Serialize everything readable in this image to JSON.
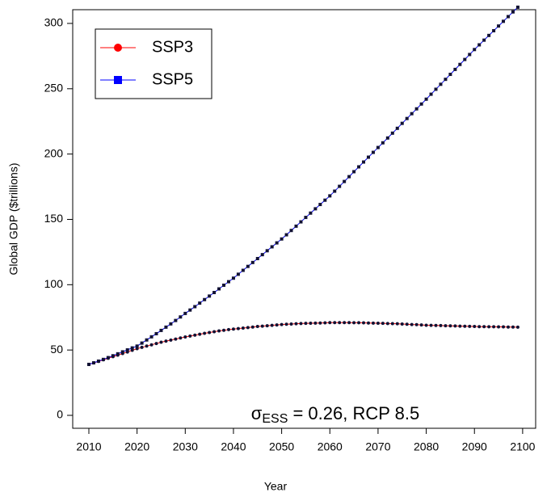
{
  "chart_data": {
    "type": "line",
    "x_label": "Year",
    "y_label": "Global GDP ($trillions)",
    "annotation": {
      "symbol": "σ",
      "subscript": "ESS",
      "text": " = 0.26, RCP 8.5"
    },
    "x": [
      2010,
      2011,
      2012,
      2013,
      2014,
      2015,
      2016,
      2017,
      2018,
      2019,
      2020,
      2021,
      2022,
      2023,
      2024,
      2025,
      2026,
      2027,
      2028,
      2029,
      2030,
      2031,
      2032,
      2033,
      2034,
      2035,
      2036,
      2037,
      2038,
      2039,
      2040,
      2041,
      2042,
      2043,
      2044,
      2045,
      2046,
      2047,
      2048,
      2049,
      2050,
      2051,
      2052,
      2053,
      2054,
      2055,
      2056,
      2057,
      2058,
      2059,
      2060,
      2061,
      2062,
      2063,
      2064,
      2065,
      2066,
      2067,
      2068,
      2069,
      2070,
      2071,
      2072,
      2073,
      2074,
      2075,
      2076,
      2077,
      2078,
      2079,
      2080,
      2081,
      2082,
      2083,
      2084,
      2085,
      2086,
      2087,
      2088,
      2089,
      2090,
      2091,
      2092,
      2093,
      2094,
      2095,
      2096,
      2097,
      2098,
      2099
    ],
    "series": [
      {
        "name": "SSP3",
        "color": "#ff0000",
        "marker": "circle",
        "values": [
          39,
          40.1,
          41.3,
          42.5,
          43.7,
          44.9,
          46.1,
          47.3,
          48.5,
          49.8,
          51,
          52,
          53,
          54,
          55,
          56,
          56.8,
          57.6,
          58.4,
          59.2,
          60,
          60.7,
          61.4,
          62.1,
          62.8,
          63.4,
          64,
          64.6,
          65.1,
          65.6,
          66,
          66.4,
          66.8,
          67.2,
          67.6,
          68,
          68.3,
          68.6,
          68.9,
          69.2,
          69.5,
          69.7,
          69.9,
          70.1,
          70.3,
          70.4,
          70.5,
          70.6,
          70.7,
          70.8,
          71,
          71,
          71,
          71,
          71,
          70.9,
          70.9,
          70.8,
          70.7,
          70.6,
          70.5,
          70.4,
          70.3,
          70.2,
          70.1,
          69.9,
          69.7,
          69.5,
          69.4,
          69.2,
          69,
          68.9,
          68.8,
          68.7,
          68.6,
          68.5,
          68.4,
          68.3,
          68.2,
          68.1,
          68,
          67.9,
          67.9,
          67.8,
          67.8,
          67.7,
          67.7,
          67.6,
          67.6,
          67.5
        ]
      },
      {
        "name": "SSP5",
        "color": "#0000ff",
        "marker": "square",
        "values": [
          39,
          40.2,
          41.5,
          42.8,
          44.2,
          45.6,
          47.1,
          48.6,
          50.1,
          51.6,
          53,
          55.3,
          57.7,
          60.1,
          62.5,
          65,
          67.5,
          70,
          72.6,
          75.3,
          78,
          80.6,
          83.2,
          85.9,
          88.6,
          91.3,
          94,
          96.8,
          99.6,
          102.3,
          105,
          108,
          111,
          114,
          117,
          120,
          123,
          126,
          129,
          132,
          135,
          138.2,
          141.5,
          144.8,
          148.1,
          151.5,
          154.8,
          158.1,
          161.4,
          164.7,
          168,
          171.6,
          175.3,
          179,
          182.7,
          186.5,
          190.2,
          193.9,
          197.6,
          201.3,
          205,
          208.6,
          212.3,
          216,
          219.7,
          223.5,
          227.2,
          230.9,
          234.6,
          238.3,
          242,
          245.8,
          249.6,
          253.4,
          257.2,
          261,
          264.8,
          268.6,
          272.4,
          276.2,
          280,
          283.6,
          287.2,
          290.8,
          294.4,
          298,
          301.6,
          305.2,
          308.8,
          312.4
        ]
      }
    ],
    "xlim": [
      2006.65,
      2102.7
    ],
    "ylim": [
      -9.9,
      310.5
    ],
    "xticks": [
      2010,
      2020,
      2030,
      2040,
      2050,
      2060,
      2070,
      2080,
      2090,
      2100
    ],
    "yticks": [
      0,
      50,
      100,
      150,
      200,
      250,
      300
    ],
    "legend": "top-left"
  }
}
